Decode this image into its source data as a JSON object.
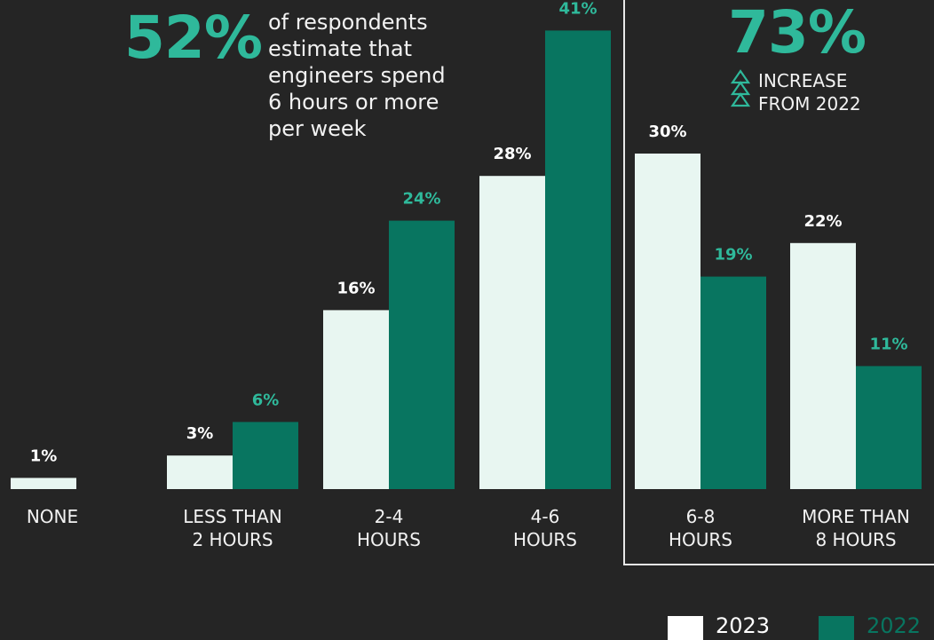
{
  "headline": {
    "stat": "52%",
    "lines": [
      "of respondents",
      "estimate that",
      "engineers spend",
      "6 hours or more",
      "per week"
    ]
  },
  "callout": {
    "stat": "73%",
    "lines": [
      "INCREASE",
      "FROM 2022"
    ],
    "icon": "triple-triangle-up-icon"
  },
  "colors": {
    "background": "#252525",
    "series_2023": "#e8f6f1",
    "series_2022": "#087560",
    "accent": "#2fb99b",
    "label_2023": "#ffffff",
    "label_2022": "#2fb99b"
  },
  "legend": {
    "items": [
      {
        "label": "2023",
        "color": "#ffffff"
      },
      {
        "label": "2022",
        "color": "#087560"
      }
    ]
  },
  "chart_data": {
    "type": "bar",
    "categories": [
      [
        "NONE"
      ],
      [
        "LESS THAN",
        "2 HOURS"
      ],
      [
        "2-4",
        "HOURS"
      ],
      [
        "4-6",
        "HOURS"
      ],
      [
        "6-8",
        "HOURS"
      ],
      [
        "MORE THAN",
        "8 HOURS"
      ]
    ],
    "series": [
      {
        "name": "2023",
        "values": [
          1,
          3,
          16,
          28,
          30,
          22
        ],
        "labels": [
          "1%",
          "3%",
          "16%",
          "28%",
          "30%",
          "22%"
        ]
      },
      {
        "name": "2022",
        "values": [
          null,
          6,
          24,
          41,
          19,
          11
        ],
        "labels": [
          null,
          "6%",
          "24%",
          "41%",
          "19%",
          "11%"
        ]
      }
    ],
    "ylim": [
      0,
      41
    ],
    "grid": false,
    "legend_position": "bottom-right"
  }
}
